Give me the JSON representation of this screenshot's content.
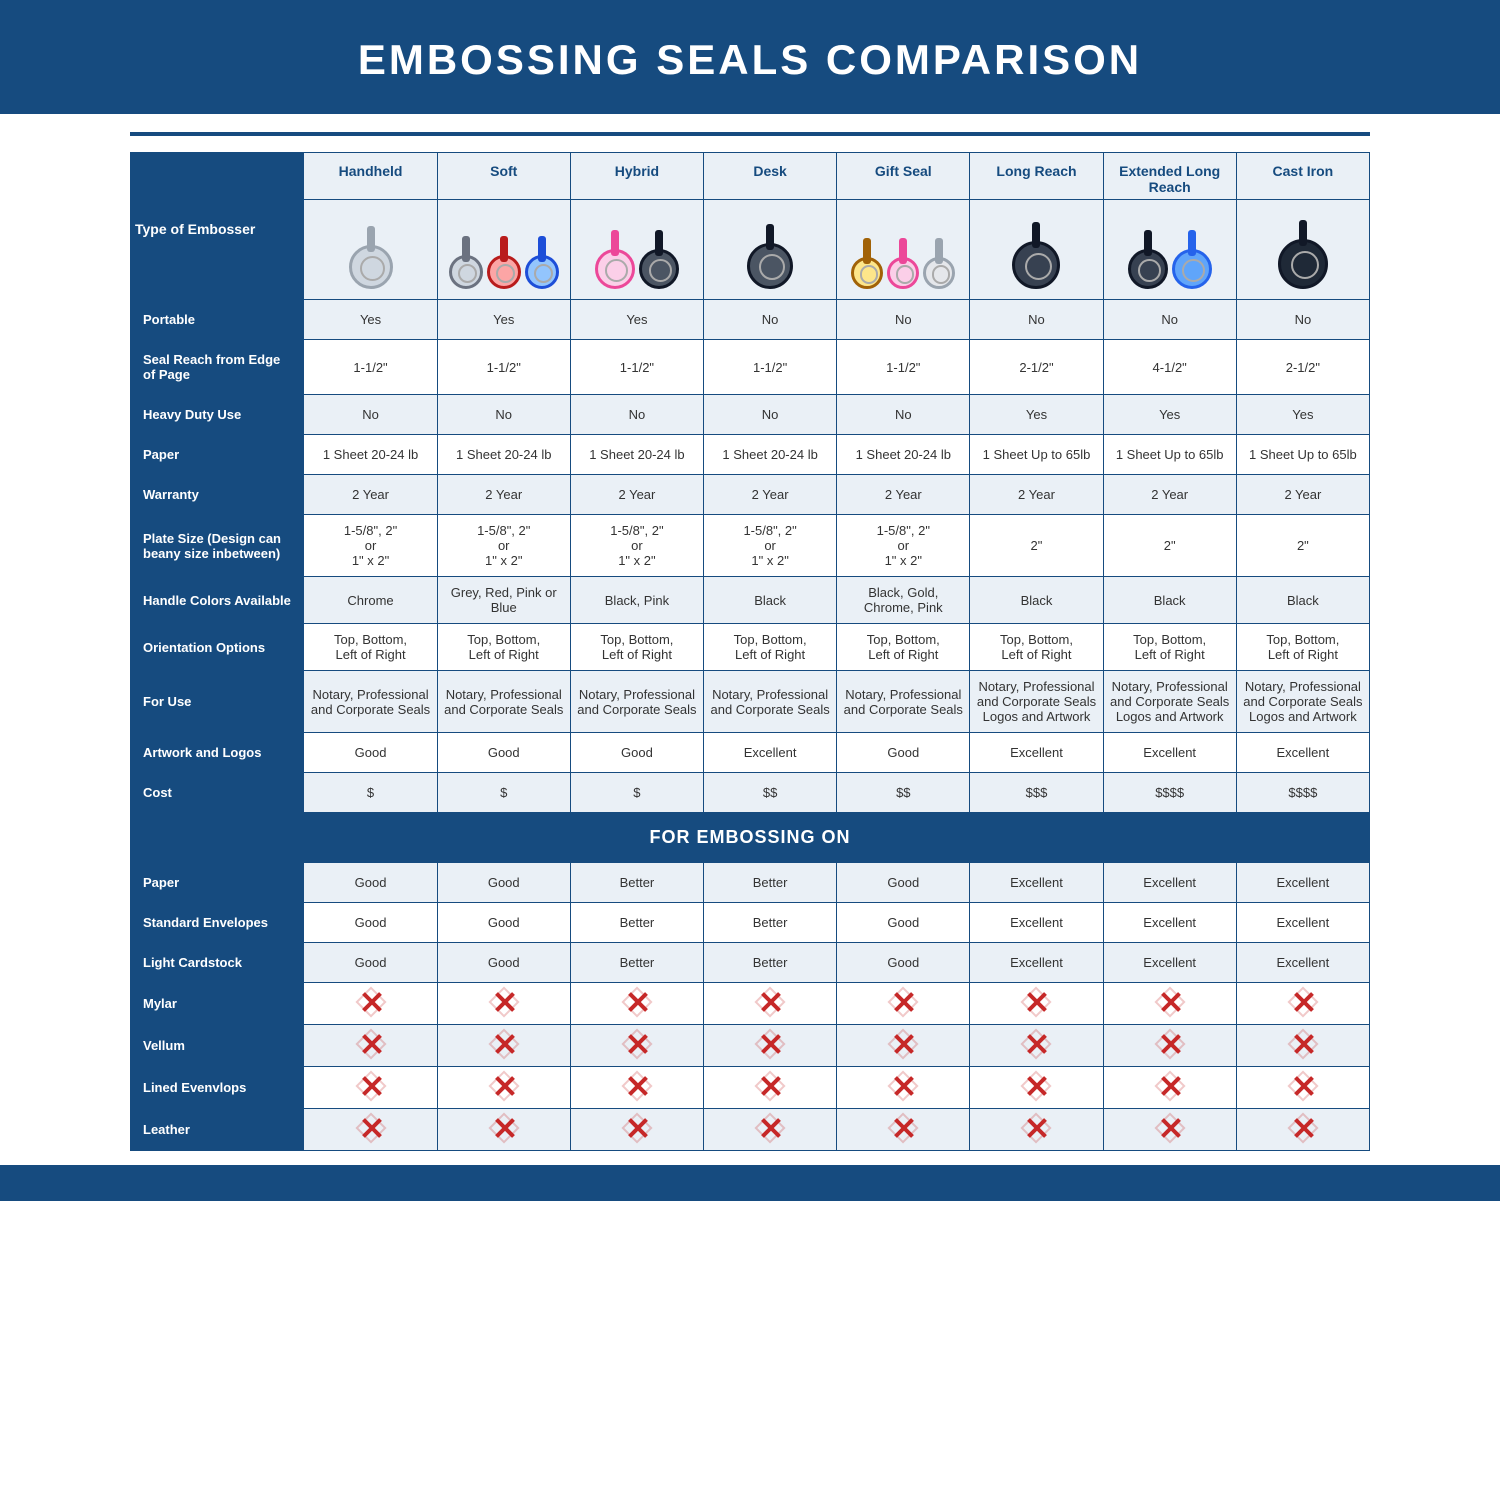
{
  "title": "EMBOSSING SEALS COMPARISON",
  "colors": {
    "brand": "#164b7f",
    "headerCellBg": "#eaf0f6",
    "altRowBg": "#eaf0f6",
    "whiteRowBg": "#ffffff",
    "xmark": "#c62828",
    "text": "#333333"
  },
  "table": {
    "type": "table",
    "typeLabel": "Type of Embosser",
    "columns": [
      "Handheld",
      "Soft",
      "Hybrid",
      "Desk",
      "Gift Seal",
      "Long Reach",
      "Extended Long Reach",
      "Cast Iron"
    ],
    "thumb_styles": [
      [
        {
          "size": 44,
          "border": "#9aa4af",
          "fill": "#cfd7e0"
        }
      ],
      [
        {
          "size": 34,
          "border": "#6b7280",
          "fill": "#cfd7e0"
        },
        {
          "size": 34,
          "border": "#b91c1c",
          "fill": "#fca5a5"
        },
        {
          "size": 34,
          "border": "#1d4ed8",
          "fill": "#93c5fd"
        }
      ],
      [
        {
          "size": 40,
          "border": "#ec4899",
          "fill": "#fbcfe8"
        },
        {
          "size": 40,
          "border": "#111827",
          "fill": "#4b5563"
        }
      ],
      [
        {
          "size": 46,
          "border": "#111827",
          "fill": "#4b5563"
        }
      ],
      [
        {
          "size": 32,
          "border": "#a16207",
          "fill": "#fde68a"
        },
        {
          "size": 32,
          "border": "#ec4899",
          "fill": "#fbcfe8"
        },
        {
          "size": 32,
          "border": "#9aa4af",
          "fill": "#e5e7eb"
        }
      ],
      [
        {
          "size": 48,
          "border": "#111827",
          "fill": "#374151"
        }
      ],
      [
        {
          "size": 40,
          "border": "#111827",
          "fill": "#374151"
        },
        {
          "size": 40,
          "border": "#2563eb",
          "fill": "#60a5fa"
        }
      ],
      [
        {
          "size": 50,
          "border": "#111827",
          "fill": "#1f2937"
        }
      ]
    ],
    "rows": [
      {
        "label": "Portable",
        "alt": true,
        "cells": [
          "Yes",
          "Yes",
          "Yes",
          "No",
          "No",
          "No",
          "No",
          "No"
        ]
      },
      {
        "label": "Seal Reach from Edge of Page",
        "alt": false,
        "cells": [
          "1-1/2\"",
          "1-1/2\"",
          "1-1/2\"",
          "1-1/2\"",
          "1-1/2\"",
          "2-1/2\"",
          "4-1/2\"",
          "2-1/2\""
        ]
      },
      {
        "label": "Heavy Duty Use",
        "alt": true,
        "cells": [
          "No",
          "No",
          "No",
          "No",
          "No",
          "Yes",
          "Yes",
          "Yes"
        ]
      },
      {
        "label": "Paper",
        "alt": false,
        "cells": [
          "1 Sheet 20-24 lb",
          "1 Sheet 20-24 lb",
          "1 Sheet 20-24 lb",
          "1 Sheet 20-24 lb",
          "1 Sheet 20-24 lb",
          "1 Sheet Up to 65lb",
          "1 Sheet Up to 65lb",
          "1 Sheet Up to 65lb"
        ]
      },
      {
        "label": "Warranty",
        "alt": true,
        "cells": [
          "2 Year",
          "2 Year",
          "2 Year",
          "2 Year",
          "2 Year",
          "2 Year",
          "2 Year",
          "2 Year"
        ]
      },
      {
        "label": "Plate Size (Design can beany size inbetween)",
        "alt": false,
        "cells": [
          "1-5/8\", 2\"\nor\n1\" x 2\"",
          "1-5/8\", 2\"\nor\n1\" x 2\"",
          "1-5/8\", 2\"\nor\n1\" x 2\"",
          "1-5/8\", 2\"\nor\n1\" x 2\"",
          "1-5/8\", 2\"\nor\n1\" x 2\"",
          "2\"",
          "2\"",
          "2\""
        ]
      },
      {
        "label": "Handle Colors Available",
        "alt": true,
        "cells": [
          "Chrome",
          "Grey, Red, Pink or Blue",
          "Black, Pink",
          "Black",
          "Black, Gold, Chrome, Pink",
          "Black",
          "Black",
          "Black"
        ]
      },
      {
        "label": "Orientation Options",
        "alt": false,
        "cells": [
          "Top, Bottom,\nLeft of Right",
          "Top, Bottom,\nLeft of Right",
          "Top, Bottom,\nLeft of Right",
          "Top, Bottom,\nLeft of Right",
          "Top, Bottom,\nLeft of Right",
          "Top, Bottom,\nLeft of Right",
          "Top, Bottom,\nLeft of Right",
          "Top, Bottom,\nLeft of Right"
        ]
      },
      {
        "label": "For Use",
        "alt": true,
        "cells": [
          "Notary, Professional and Corporate Seals",
          "Notary, Professional and Corporate Seals",
          "Notary, Professional and Corporate Seals",
          "Notary, Professional and Corporate Seals",
          "Notary, Professional and Corporate Seals",
          "Notary, Professional and Corporate Seals Logos and Artwork",
          "Notary, Professional and Corporate Seals Logos and Artwork",
          "Notary, Professional and Corporate Seals Logos and Artwork"
        ]
      },
      {
        "label": "Artwork and Logos",
        "alt": false,
        "cells": [
          "Good",
          "Good",
          "Good",
          "Excellent",
          "Good",
          "Excellent",
          "Excellent",
          "Excellent"
        ]
      },
      {
        "label": "Cost",
        "alt": true,
        "cells": [
          "$",
          "$",
          "$",
          "$$",
          "$$",
          "$$$",
          "$$$$",
          "$$$$"
        ]
      }
    ],
    "sectionLabel": "FOR EMBOSSING ON",
    "section_rows": [
      {
        "label": "Paper",
        "alt": true,
        "cells": [
          "Good",
          "Good",
          "Better",
          "Better",
          "Good",
          "Excellent",
          "Excellent",
          "Excellent"
        ]
      },
      {
        "label": "Standard Envelopes",
        "alt": false,
        "cells": [
          "Good",
          "Good",
          "Better",
          "Better",
          "Good",
          "Excellent",
          "Excellent",
          "Excellent"
        ]
      },
      {
        "label": "Light Cardstock",
        "alt": true,
        "cells": [
          "Good",
          "Good",
          "Better",
          "Better",
          "Good",
          "Excellent",
          "Excellent",
          "Excellent"
        ]
      },
      {
        "label": "Mylar",
        "alt": false,
        "cells": [
          "X",
          "X",
          "X",
          "X",
          "X",
          "X",
          "X",
          "X"
        ]
      },
      {
        "label": "Vellum",
        "alt": true,
        "cells": [
          "X",
          "X",
          "X",
          "X",
          "X",
          "X",
          "X",
          "X"
        ]
      },
      {
        "label": "Lined Evenvlops",
        "alt": false,
        "cells": [
          "X",
          "X",
          "X",
          "X",
          "X",
          "X",
          "X",
          "X"
        ]
      },
      {
        "label": "Leather",
        "alt": true,
        "cells": [
          "X",
          "X",
          "X",
          "X",
          "X",
          "X",
          "X",
          "X"
        ]
      }
    ]
  }
}
